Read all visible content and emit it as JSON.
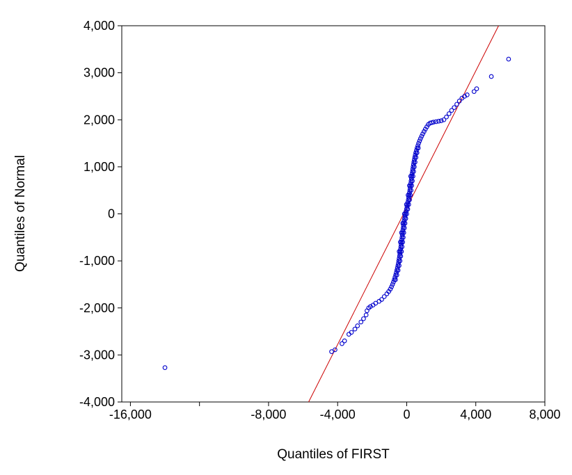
{
  "page": {
    "background": "#ffffff"
  },
  "chart_data": {
    "type": "scatter",
    "title": "",
    "xlabel": "Quantiles of FIRST",
    "ylabel": "Quantiles of Normal",
    "xlim": [
      -16500,
      8000
    ],
    "ylim": [
      -4000,
      4000
    ],
    "grid": false,
    "legend": "none",
    "x_ticks": [
      {
        "v": -16000,
        "label": "-16,000"
      },
      {
        "v": -12000,
        "label": ""
      },
      {
        "v": -8000,
        "label": "-8,000"
      },
      {
        "v": -4000,
        "label": "-4,000"
      },
      {
        "v": 0,
        "label": "0"
      },
      {
        "v": 4000,
        "label": "4,000"
      },
      {
        "v": 8000,
        "label": "8,000"
      }
    ],
    "y_ticks": [
      {
        "v": 4000,
        "label": "4,000"
      },
      {
        "v": 3000,
        "label": "3,000"
      },
      {
        "v": 2000,
        "label": "2,000"
      },
      {
        "v": 1000,
        "label": "1,000"
      },
      {
        "v": 0,
        "label": "0"
      },
      {
        "v": -1000,
        "label": "-1,000"
      },
      {
        "v": -2000,
        "label": "-2,000"
      },
      {
        "v": -3000,
        "label": "-3,000"
      },
      {
        "v": -4000,
        "label": "-4,000"
      }
    ],
    "marker": {
      "shape": "open-circle",
      "color": "#0000cc",
      "radius": 2.8
    },
    "reference_line": {
      "color": "#cc0000",
      "x1": -5680,
      "y1": -4000,
      "x2": 5320,
      "y2": 4000
    },
    "points": [
      [
        -1150,
        -1700
      ],
      [
        -1040,
        -1650
      ],
      [
        -950,
        -1600
      ],
      [
        -880,
        -1550
      ],
      [
        -820,
        -1500
      ],
      [
        -768,
        -1450
      ],
      [
        -720,
        -1400
      ],
      [
        -678,
        -1350
      ],
      [
        -640,
        -1300
      ],
      [
        -604,
        -1250
      ],
      [
        -570,
        -1200
      ],
      [
        -540,
        -1150
      ],
      [
        -510,
        -1100
      ],
      [
        -484,
        -1050
      ],
      [
        -460,
        -1000
      ],
      [
        -437,
        -950
      ],
      [
        -415,
        -900
      ],
      [
        -395,
        -850
      ],
      [
        -375,
        -800
      ],
      [
        -357,
        -750
      ],
      [
        -340,
        -700
      ],
      [
        -322,
        -650
      ],
      [
        -305,
        -600
      ],
      [
        -288,
        -550
      ],
      [
        -272,
        -500
      ],
      [
        -256,
        -450
      ],
      [
        -240,
        -400
      ],
      [
        -222,
        -350
      ],
      [
        -205,
        -300
      ],
      [
        -187,
        -250
      ],
      [
        -168,
        -200
      ],
      [
        -147,
        -150
      ],
      [
        -125,
        -100
      ],
      [
        -99,
        -50
      ],
      [
        -70,
        0
      ],
      [
        -40,
        50
      ],
      [
        -10,
        100
      ],
      [
        18,
        150
      ],
      [
        45,
        200
      ],
      [
        70,
        250
      ],
      [
        95,
        300
      ],
      [
        118,
        350
      ],
      [
        140,
        400
      ],
      [
        160,
        450
      ],
      [
        180,
        500
      ],
      [
        199,
        550
      ],
      [
        218,
        600
      ],
      [
        236,
        650
      ],
      [
        255,
        700
      ],
      [
        273,
        750
      ],
      [
        292,
        800
      ],
      [
        311,
        850
      ],
      [
        330,
        900
      ],
      [
        350,
        950
      ],
      [
        370,
        1000
      ],
      [
        392,
        1050
      ],
      [
        415,
        1100
      ],
      [
        440,
        1150
      ],
      [
        465,
        1200
      ],
      [
        495,
        1250
      ],
      [
        525,
        1300
      ],
      [
        562,
        1350
      ],
      [
        600,
        1400
      ],
      [
        645,
        1450
      ],
      [
        690,
        1500
      ],
      [
        745,
        1550
      ],
      [
        800,
        1600
      ],
      [
        865,
        1650
      ],
      [
        930,
        1700
      ],
      [
        1005,
        1750
      ],
      [
        1080,
        1800
      ],
      [
        1165,
        1850
      ],
      [
        1250,
        1900
      ],
      [
        -650,
        -1400
      ],
      [
        -570,
        -1300
      ],
      [
        -500,
        -1200
      ],
      [
        -440,
        -1100
      ],
      [
        -390,
        -1000
      ],
      [
        -345,
        -900
      ],
      [
        -305,
        -800
      ],
      [
        -270,
        -700
      ],
      [
        -235,
        -600
      ],
      [
        -202,
        -500
      ],
      [
        -170,
        -400
      ],
      [
        -135,
        -300
      ],
      [
        -98,
        -200
      ],
      [
        -55,
        -100
      ],
      [
        0,
        0
      ],
      [
        60,
        100
      ],
      [
        115,
        200
      ],
      [
        165,
        300
      ],
      [
        210,
        400
      ],
      [
        250,
        500
      ],
      [
        288,
        600
      ],
      [
        325,
        700
      ],
      [
        362,
        800
      ],
      [
        400,
        900
      ],
      [
        440,
        1000
      ],
      [
        485,
        1100
      ],
      [
        535,
        1200
      ],
      [
        595,
        1300
      ],
      [
        670,
        1400
      ],
      [
        -435,
        -800
      ],
      [
        -365,
        -600
      ],
      [
        -300,
        -400
      ],
      [
        -228,
        -200
      ],
      [
        -130,
        0
      ],
      [
        -15,
        200
      ],
      [
        80,
        400
      ],
      [
        158,
        600
      ],
      [
        232,
        800
      ],
      [
        -1300,
        -1760
      ],
      [
        -1450,
        -1820
      ],
      [
        -1600,
        -1860
      ],
      [
        -1800,
        -1900
      ],
      [
        -1950,
        -1940
      ],
      [
        -2100,
        -1970
      ],
      [
        -2200,
        -2000
      ],
      [
        -2300,
        -2060
      ],
      [
        -2350,
        -2150
      ],
      [
        -2500,
        -2230
      ],
      [
        -2650,
        -2300
      ],
      [
        -2850,
        -2380
      ],
      [
        -3000,
        -2450
      ],
      [
        -3200,
        -2520
      ],
      [
        -3350,
        -2560
      ],
      [
        -3600,
        -2700
      ],
      [
        -3750,
        -2760
      ],
      [
        -4150,
        -2890
      ],
      [
        -4350,
        -2930
      ],
      [
        -14000,
        -3270
      ],
      [
        1350,
        1930
      ],
      [
        1450,
        1940
      ],
      [
        1550,
        1950
      ],
      [
        1700,
        1960
      ],
      [
        1850,
        1970
      ],
      [
        2000,
        1980
      ],
      [
        2150,
        2000
      ],
      [
        2300,
        2060
      ],
      [
        2450,
        2130
      ],
      [
        2600,
        2200
      ],
      [
        2750,
        2260
      ],
      [
        2900,
        2330
      ],
      [
        3050,
        2400
      ],
      [
        3200,
        2460
      ],
      [
        3350,
        2500
      ],
      [
        3500,
        2530
      ],
      [
        3900,
        2600
      ],
      [
        4050,
        2660
      ],
      [
        4900,
        2920
      ],
      [
        5900,
        3290
      ]
    ]
  }
}
